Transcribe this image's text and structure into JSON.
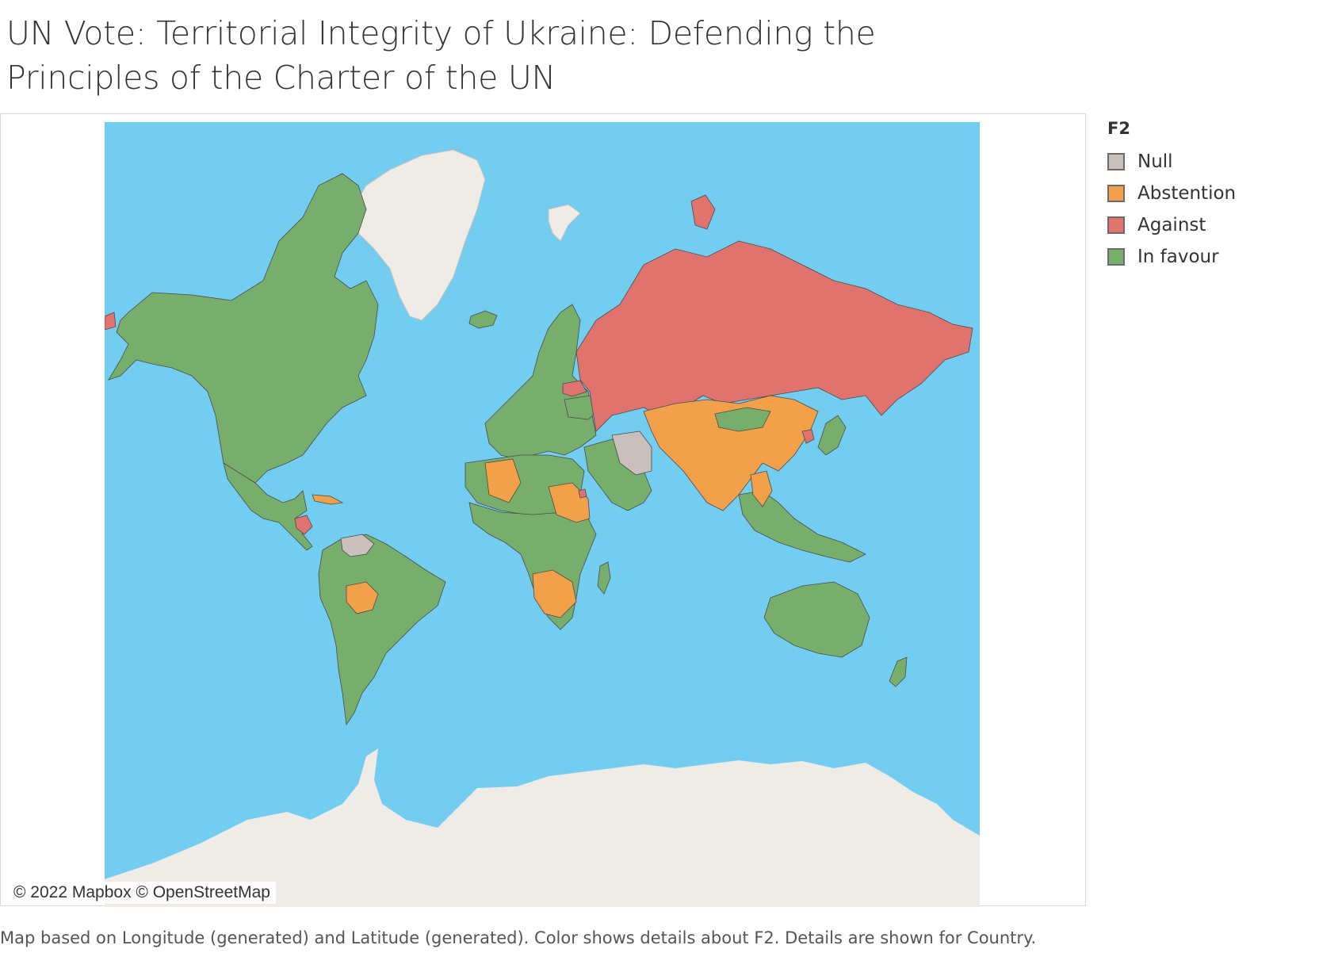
{
  "title": "UN Vote: Territorial Integrity of Ukraine: Defending the Principles of the Charter of the UN",
  "map": {
    "attribution": "© 2022 Mapbox © OpenStreetMap",
    "colors": {
      "ocean": "#73cdf0",
      "land_unmatched": "#efebe6",
      "border": "#4a4a4a"
    }
  },
  "legend": {
    "title": "F2",
    "items": [
      {
        "label": "Null",
        "color": "#c9bfbc"
      },
      {
        "label": "Abstention",
        "color": "#f3a04a"
      },
      {
        "label": "Against",
        "color": "#e0736d"
      },
      {
        "label": "In favour",
        "color": "#78ae6c"
      }
    ]
  },
  "caption": "Map based on Longitude (generated) and Latitude (generated).  Color shows details about F2.  Details are shown for Country."
}
